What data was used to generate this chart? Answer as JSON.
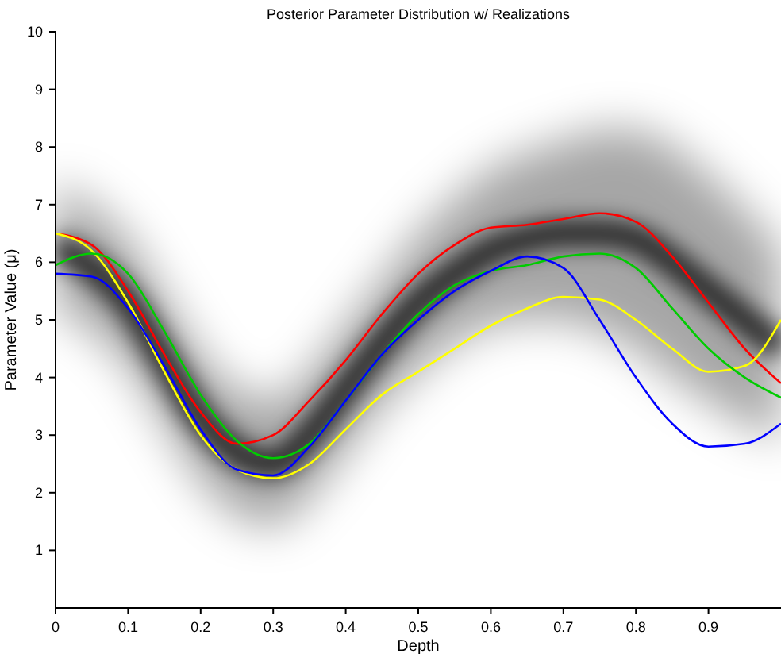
{
  "chart_data": {
    "type": "line",
    "title": "Posterior Parameter Distribution w/ Realizations",
    "xlabel": "Depth",
    "ylabel": "Parameter Value (μ)",
    "x": [
      0,
      0.05,
      0.1,
      0.15,
      0.2,
      0.25,
      0.3,
      0.35,
      0.4,
      0.45,
      0.5,
      0.55,
      0.6,
      0.65,
      0.7,
      0.75,
      0.8,
      0.85,
      0.9,
      0.95,
      1.0
    ],
    "xlim": [
      0,
      1
    ],
    "xticks": [
      0,
      0.1,
      0.2,
      0.3,
      0.4,
      0.5,
      0.6,
      0.7,
      0.8,
      0.9
    ],
    "ylim": [
      0,
      10
    ],
    "yticks": [
      1,
      2,
      3,
      4,
      5,
      6,
      7,
      8,
      9,
      10
    ],
    "grid": false,
    "marker": "none",
    "line_style": "solid",
    "series": [
      {
        "color": "#000000",
        "values": [
          6.3,
          5.9,
          5.3,
          4.3,
          3.3,
          2.7,
          2.5,
          3.0,
          3.8,
          4.6,
          5.3,
          5.8,
          6.2,
          6.4,
          6.5,
          6.5,
          6.4,
          6.0,
          5.5,
          5.0,
          4.5
        ],
        "lower": [
          5.2,
          4.8,
          4.2,
          3.2,
          2.2,
          1.6,
          1.4,
          1.9,
          2.7,
          3.5,
          4.1,
          4.6,
          4.9,
          5.0,
          5.0,
          4.8,
          4.5,
          4.0,
          3.6,
          3.2,
          2.9
        ],
        "upper": [
          7.4,
          7.0,
          6.4,
          5.4,
          4.4,
          3.8,
          3.6,
          4.1,
          4.9,
          5.7,
          6.5,
          7.1,
          7.6,
          7.9,
          8.1,
          8.3,
          8.3,
          8.0,
          7.5,
          6.9,
          6.2
        ]
      },
      {
        "color": "#ff0000",
        "values": [
          6.5,
          6.3,
          5.5,
          4.4,
          3.4,
          2.85,
          3.0,
          3.6,
          4.3,
          5.1,
          5.8,
          6.3,
          6.6,
          6.65,
          6.75,
          6.85,
          6.7,
          6.1,
          5.3,
          4.5,
          3.9
        ]
      },
      {
        "color": "#ffff00",
        "values": [
          6.5,
          6.2,
          5.3,
          4.1,
          3.0,
          2.4,
          2.25,
          2.5,
          3.1,
          3.7,
          4.1,
          4.5,
          4.9,
          5.2,
          5.4,
          5.35,
          5.0,
          4.5,
          4.1,
          4.2,
          5.0
        ]
      },
      {
        "color": "#00cc00",
        "values": [
          5.95,
          6.15,
          5.8,
          4.8,
          3.7,
          2.9,
          2.6,
          2.85,
          3.6,
          4.4,
          5.1,
          5.6,
          5.85,
          5.95,
          6.1,
          6.15,
          5.9,
          5.2,
          4.5,
          4.0,
          3.65
        ]
      },
      {
        "color": "#0000ff",
        "values": [
          5.8,
          5.75,
          5.2,
          4.2,
          3.1,
          2.4,
          2.3,
          2.8,
          3.6,
          4.4,
          5.0,
          5.5,
          5.85,
          6.1,
          5.9,
          5.0,
          4.0,
          3.2,
          2.8,
          2.85,
          3.2
        ]
      }
    ]
  }
}
